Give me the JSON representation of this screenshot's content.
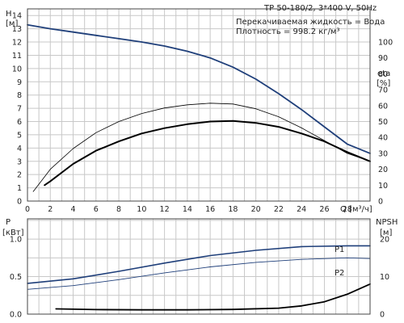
{
  "header": {
    "title": "TP 50-180/2, 3*400 V, 50Hz",
    "liquid": "Перекачиваемая жидкость = Вода",
    "density": "Плотность = 998.2 кг/м³"
  },
  "chart_data": [
    {
      "type": "line",
      "title": "TP 50-180/2, 3*400 V, 50Hz",
      "xlabel": "Q [м³/ч]",
      "x_ticks": [
        "0",
        "2",
        "4",
        "6",
        "8",
        "10",
        "12",
        "14",
        "16",
        "18",
        "20",
        "22",
        "24",
        "26",
        "28"
      ],
      "xlim": [
        0,
        30
      ],
      "ylabel": "H [м]",
      "y_ticks": [
        "0",
        "1",
        "2",
        "3",
        "4",
        "5",
        "6",
        "7",
        "8",
        "9",
        "10",
        "11",
        "12",
        "13",
        "14"
      ],
      "ylim": [
        0,
        14.5
      ],
      "ylabel_right": "eta [%]",
      "y2_ticks": [
        "0",
        "10",
        "20",
        "30",
        "40",
        "50",
        "60",
        "70",
        "80",
        "90",
        "100"
      ],
      "y2lim": [
        0,
        120.8
      ],
      "grid": true,
      "series": [
        {
          "name": "",
          "axis": "left",
          "color": "#1f3f7a",
          "width": 1.8,
          "x": [
            0,
            2,
            4,
            6,
            8,
            10,
            12,
            14,
            16,
            18,
            20,
            22,
            24,
            26,
            28,
            30
          ],
          "y": [
            13.3,
            13.0,
            12.75,
            12.5,
            12.25,
            12.0,
            11.7,
            11.3,
            10.8,
            10.1,
            9.2,
            8.1,
            6.9,
            5.6,
            4.3,
            3.6
          ]
        },
        {
          "name": "",
          "axis": "right",
          "color": "#000000",
          "width": 0.8,
          "x": [
            0.5,
            2,
            4,
            6,
            8,
            10,
            12,
            14,
            16,
            18,
            20,
            22,
            24,
            26,
            28,
            30
          ],
          "y": [
            6,
            20,
            33,
            43,
            50,
            55,
            58.5,
            60.5,
            61.5,
            61,
            58,
            53,
            46,
            38,
            30,
            25
          ]
        },
        {
          "name": "",
          "axis": "left",
          "color": "#000000",
          "width": 2.0,
          "x": [
            1.5,
            2,
            4,
            6,
            8,
            10,
            12,
            14,
            16,
            18,
            20,
            22,
            24,
            26,
            28,
            30
          ],
          "y": [
            1.2,
            1.5,
            2.8,
            3.8,
            4.5,
            5.1,
            5.5,
            5.8,
            6.0,
            6.05,
            5.9,
            5.6,
            5.1,
            4.5,
            3.7,
            3.0
          ]
        }
      ]
    },
    {
      "type": "line",
      "xlabel": "",
      "xlim": [
        0,
        30
      ],
      "ylabel": "P [кВт]",
      "y_ticks": [
        "0.0",
        "0.5",
        "1.0"
      ],
      "ylim": [
        0,
        1.27
      ],
      "ylabel_right": "NPSH [м]",
      "y2_ticks": [
        "0",
        "10",
        "20"
      ],
      "y2lim": [
        0,
        25.4
      ],
      "grid": true,
      "series": [
        {
          "name": "P1",
          "axis": "left",
          "color": "#1f3f7a",
          "width": 1.6,
          "x": [
            0,
            4,
            8,
            12,
            16,
            20,
            24,
            28,
            30
          ],
          "y": [
            0.41,
            0.47,
            0.57,
            0.68,
            0.78,
            0.85,
            0.9,
            0.91,
            0.91
          ]
        },
        {
          "name": "P2",
          "axis": "left",
          "color": "#1f3f7a",
          "width": 0.9,
          "x": [
            0,
            4,
            8,
            12,
            16,
            20,
            24,
            28,
            30
          ],
          "y": [
            0.33,
            0.38,
            0.46,
            0.55,
            0.63,
            0.69,
            0.73,
            0.75,
            0.74
          ]
        },
        {
          "name": "",
          "axis": "right",
          "color": "#000000",
          "width": 1.8,
          "x": [
            2.5,
            6,
            10,
            14,
            18,
            22,
            24,
            26,
            28,
            30
          ],
          "y": [
            1.4,
            1.2,
            1.15,
            1.15,
            1.25,
            1.6,
            2.2,
            3.3,
            5.3,
            8.0
          ]
        }
      ]
    }
  ]
}
